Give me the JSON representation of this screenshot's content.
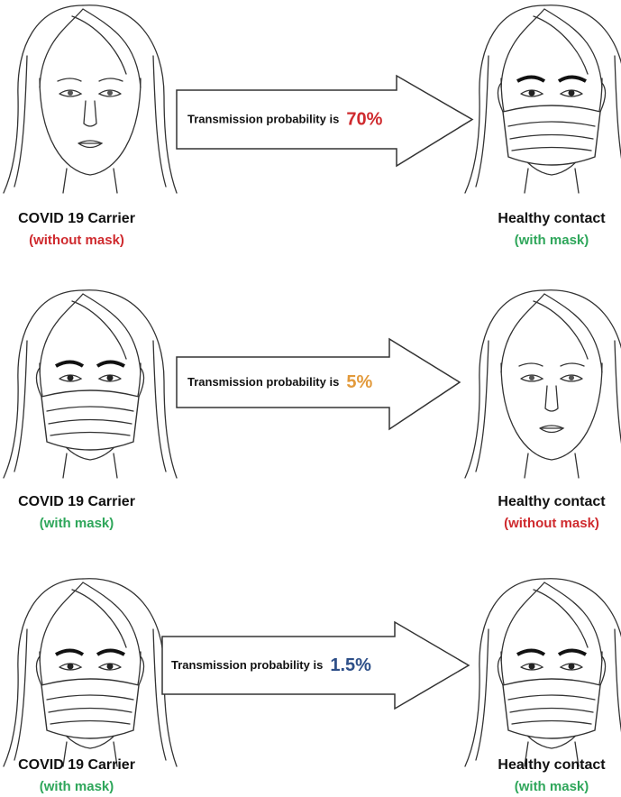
{
  "rows": [
    {
      "carrier": {
        "label": "COVID 19 Carrier",
        "mask": "(without mask)"
      },
      "arrow": {
        "text": "Transmission probability is",
        "value": "70%"
      },
      "contact": {
        "label": "Healthy contact",
        "mask": "(with mask)"
      }
    },
    {
      "carrier": {
        "label": "COVID 19 Carrier",
        "mask": "(with mask)"
      },
      "arrow": {
        "text": "Transmission probability is",
        "value": "5%"
      },
      "contact": {
        "label": "Healthy contact",
        "mask": "(without mask)"
      }
    },
    {
      "carrier": {
        "label": "COVID 19 Carrier",
        "mask": "(with mask)"
      },
      "arrow": {
        "text": "Transmission probability is",
        "value": "1.5%"
      },
      "contact": {
        "label": "Healthy contact",
        "mask": "(with mask)"
      }
    }
  ]
}
